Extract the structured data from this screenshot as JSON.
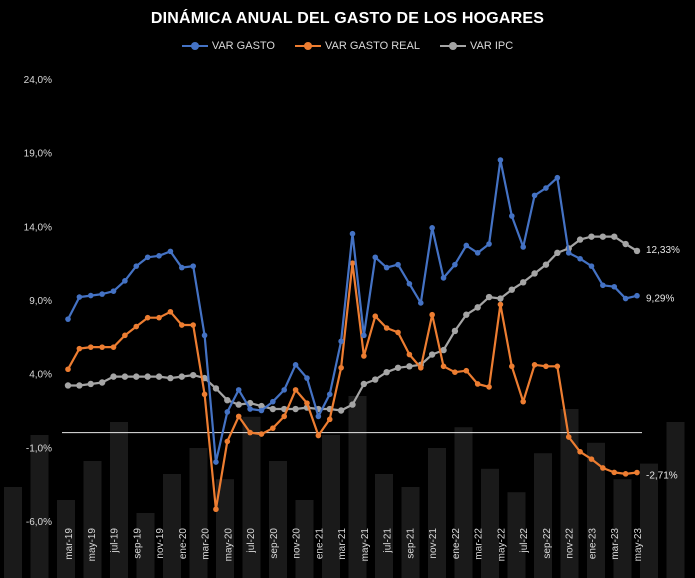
{
  "chart_data": {
    "type": "line",
    "title": "DINÁMICA ANUAL DEL GASTO DE LOS HOGARES",
    "xlabel": "",
    "ylabel": "",
    "ylim": [
      -6,
      24
    ],
    "y_ticks": [
      "24,0%",
      "19,0%",
      "14,0%",
      "9,0%",
      "4,0%",
      "-1,0%",
      "-6,0%"
    ],
    "y_tick_values": [
      24,
      19,
      14,
      9,
      4,
      -1,
      -6
    ],
    "x_tick_labels": [
      "mar-19",
      "may-19",
      "jul-19",
      "sep-19",
      "nov-19",
      "ene-20",
      "mar-20",
      "may-20",
      "jul-20",
      "sep-20",
      "nov-20",
      "ene-21",
      "mar-21",
      "may-21",
      "jul-21",
      "sep-21",
      "nov-21",
      "ene-22",
      "mar-22",
      "may-22",
      "jul-22",
      "sep-22",
      "nov-22",
      "ene-23",
      "mar-23",
      "may-23"
    ],
    "x": [
      "mar-19",
      "abr-19",
      "may-19",
      "jun-19",
      "jul-19",
      "ago-19",
      "sep-19",
      "oct-19",
      "nov-19",
      "dic-19",
      "ene-20",
      "feb-20",
      "mar-20",
      "abr-20",
      "may-20",
      "jun-20",
      "jul-20",
      "ago-20",
      "sep-20",
      "oct-20",
      "nov-20",
      "dic-20",
      "ene-21",
      "feb-21",
      "mar-21",
      "abr-21",
      "may-21",
      "jun-21",
      "jul-21",
      "ago-21",
      "sep-21",
      "oct-21",
      "nov-21",
      "dic-21",
      "ene-22",
      "feb-22",
      "mar-22",
      "abr-22",
      "may-22",
      "jun-22",
      "jul-22",
      "ago-22",
      "sep-22",
      "oct-22",
      "nov-22",
      "dic-22",
      "ene-23",
      "feb-23",
      "mar-23",
      "abr-23",
      "may-23"
    ],
    "legend_position": "top",
    "grid": false,
    "zero_line": 0,
    "series": [
      {
        "name": "VAR GASTO",
        "color": "#4472C4",
        "end_label": "9,29%",
        "values": [
          7.7,
          9.2,
          9.3,
          9.4,
          9.6,
          10.3,
          11.3,
          11.9,
          12.0,
          12.3,
          11.2,
          11.3,
          6.6,
          -2.0,
          1.4,
          2.9,
          1.6,
          1.5,
          2.1,
          2.9,
          4.6,
          3.7,
          1.1,
          2.6,
          6.2,
          13.5,
          6.6,
          11.9,
          11.2,
          11.4,
          10.1,
          8.8,
          13.9,
          10.5,
          11.4,
          12.7,
          12.2,
          12.8,
          18.5,
          14.7,
          12.6,
          16.1,
          16.6,
          17.3,
          12.2,
          11.8,
          11.3,
          10.0,
          9.9,
          9.1,
          9.29
        ]
      },
      {
        "name": "VAR GASTO REAL",
        "color": "#ED7D31",
        "end_label": "-2,71%",
        "values": [
          4.3,
          5.7,
          5.8,
          5.8,
          5.8,
          6.6,
          7.2,
          7.8,
          7.8,
          8.2,
          7.3,
          7.3,
          2.6,
          -5.2,
          -0.6,
          1.1,
          0.0,
          -0.1,
          0.3,
          1.1,
          2.9,
          2.0,
          -0.2,
          0.9,
          4.4,
          11.5,
          5.2,
          7.9,
          7.1,
          6.8,
          5.3,
          4.4,
          8.0,
          4.5,
          4.1,
          4.2,
          3.3,
          3.1,
          8.7,
          4.5,
          2.1,
          4.6,
          4.5,
          4.5,
          -0.3,
          -1.3,
          -1.8,
          -2.4,
          -2.7,
          -2.8,
          -2.71
        ]
      },
      {
        "name": "VAR IPC",
        "color": "#A5A5A5",
        "end_label": "12,33%",
        "values": [
          3.2,
          3.2,
          3.3,
          3.4,
          3.8,
          3.8,
          3.8,
          3.8,
          3.8,
          3.7,
          3.8,
          3.9,
          3.7,
          3.0,
          2.2,
          1.9,
          2.0,
          1.8,
          1.6,
          1.6,
          1.6,
          1.7,
          1.6,
          1.6,
          1.5,
          1.9,
          3.3,
          3.6,
          4.1,
          4.4,
          4.5,
          4.6,
          5.3,
          5.6,
          6.9,
          8.0,
          8.5,
          9.2,
          9.1,
          9.7,
          10.2,
          10.8,
          11.4,
          12.2,
          12.5,
          13.1,
          13.3,
          13.3,
          13.3,
          12.8,
          12.33
        ]
      }
    ]
  }
}
